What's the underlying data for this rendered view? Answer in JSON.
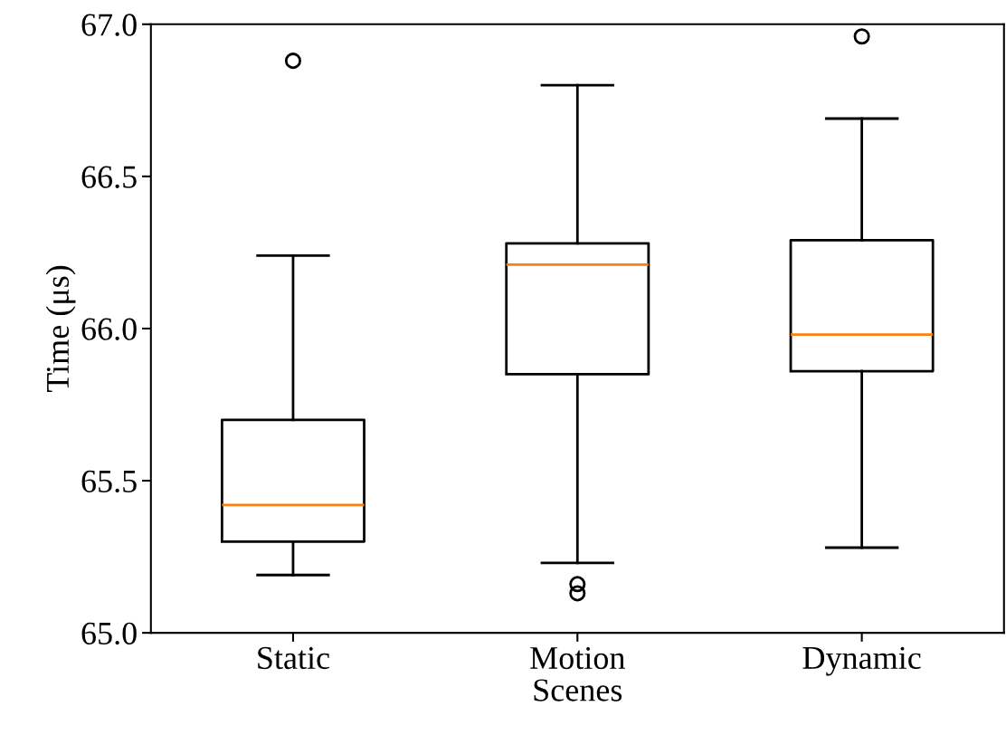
{
  "chart_data": {
    "type": "box",
    "xlabel": "Scenes",
    "ylabel": "Time (μs)",
    "categories": [
      "Static",
      "Motion",
      "Dynamic"
    ],
    "boxes": [
      {
        "low": 65.19,
        "q1": 65.3,
        "median": 65.42,
        "q3": 65.7,
        "high": 66.24,
        "outliers": [
          66.88
        ]
      },
      {
        "low": 65.23,
        "q1": 65.85,
        "median": 66.21,
        "q3": 66.28,
        "high": 66.8,
        "outliers": [
          65.16,
          65.13
        ]
      },
      {
        "low": 65.28,
        "q1": 65.86,
        "median": 65.98,
        "q3": 66.29,
        "high": 66.69,
        "outliers": [
          66.96
        ]
      }
    ],
    "ylim": [
      65.0,
      67.0
    ],
    "yticks": [
      {
        "value": 65.0,
        "label": "65.0"
      },
      {
        "value": 65.5,
        "label": "65.5"
      },
      {
        "value": 66.0,
        "label": "66.0"
      },
      {
        "value": 66.5,
        "label": "66.5"
      },
      {
        "value": 67.0,
        "label": "67.0"
      }
    ],
    "grid": false
  }
}
